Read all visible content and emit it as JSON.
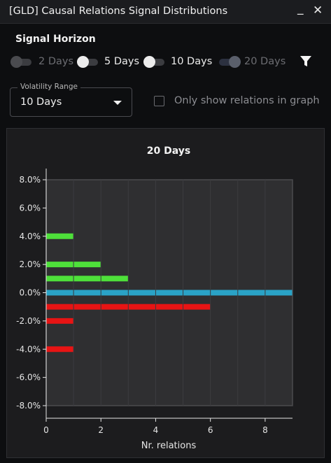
{
  "window": {
    "title": "[GLD] Causal Relations Signal Distributions",
    "minimize_label": "_",
    "close_label": "✕"
  },
  "controls": {
    "signal_horizon_label": "Signal Horizon",
    "toggles": [
      {
        "label": "2 Days",
        "state": "off"
      },
      {
        "label": "5 Days",
        "state": "on"
      },
      {
        "label": "10 Days",
        "state": "on"
      },
      {
        "label": "20 Days",
        "state": "highlighted"
      }
    ],
    "filter_icon": "filter-icon",
    "volatility_range": {
      "legend": "Volatility Range",
      "value": "10 Days"
    },
    "only_show_checkbox": {
      "label": "Only show relations in graph",
      "checked": false
    }
  },
  "colors": {
    "positive": "#4ee03a",
    "negative": "#e81414",
    "zero": "#2aa3c7",
    "plot_bg": "#2f2f31"
  },
  "chart_data": {
    "type": "bar",
    "orientation": "horizontal",
    "title": "20 Days",
    "xlabel": "Nr. relations",
    "ylabel": "",
    "xlim": [
      0,
      9
    ],
    "ylim": [
      -8,
      8
    ],
    "x_ticks": [
      0,
      2,
      4,
      6,
      8
    ],
    "y_ticks": [
      "8.0%",
      "6.0%",
      "4.0%",
      "2.0%",
      "0.0%",
      "-2.0%",
      "-4.0%",
      "-6.0%",
      "-8.0%"
    ],
    "y_tick_values": [
      8,
      6,
      4,
      2,
      0,
      -2,
      -4,
      -6,
      -8
    ],
    "grid": true,
    "bars": [
      {
        "y": 4,
        "count": 1
      },
      {
        "y": 2,
        "count": 2
      },
      {
        "y": 1,
        "count": 3
      },
      {
        "y": 0,
        "count": 9
      },
      {
        "y": -1,
        "count": 6
      },
      {
        "y": -2,
        "count": 1
      },
      {
        "y": -4,
        "count": 1
      }
    ]
  }
}
